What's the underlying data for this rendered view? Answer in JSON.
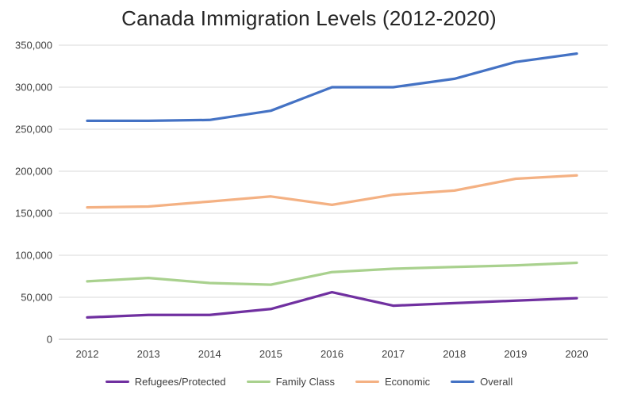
{
  "chart_data": {
    "type": "line",
    "title": "Canada Immigration Levels (2012-2020)",
    "categories": [
      "2012",
      "2013",
      "2014",
      "2015",
      "2016",
      "2017",
      "2018",
      "2019",
      "2020"
    ],
    "series": [
      {
        "name": "Refugees/Protected",
        "color": "#7030a0",
        "values": [
          26000,
          29000,
          29000,
          36000,
          56000,
          40000,
          43000,
          46000,
          49000
        ]
      },
      {
        "name": "Family Class",
        "color": "#a9d18e",
        "values": [
          69000,
          73000,
          67000,
          65000,
          80000,
          84000,
          86000,
          88000,
          91000
        ]
      },
      {
        "name": "Economic",
        "color": "#f4b183",
        "values": [
          157000,
          158000,
          164000,
          170000,
          160000,
          172000,
          177000,
          191000,
          195000
        ]
      },
      {
        "name": "Overall",
        "color": "#4472c4",
        "values": [
          260000,
          260000,
          261000,
          272000,
          300000,
          300000,
          310000,
          330000,
          340000
        ]
      }
    ],
    "ylim": [
      0,
      350000
    ],
    "ytick_step": 50000,
    "grid": true,
    "legend_position": "bottom",
    "xlabel": "",
    "ylabel": ""
  }
}
